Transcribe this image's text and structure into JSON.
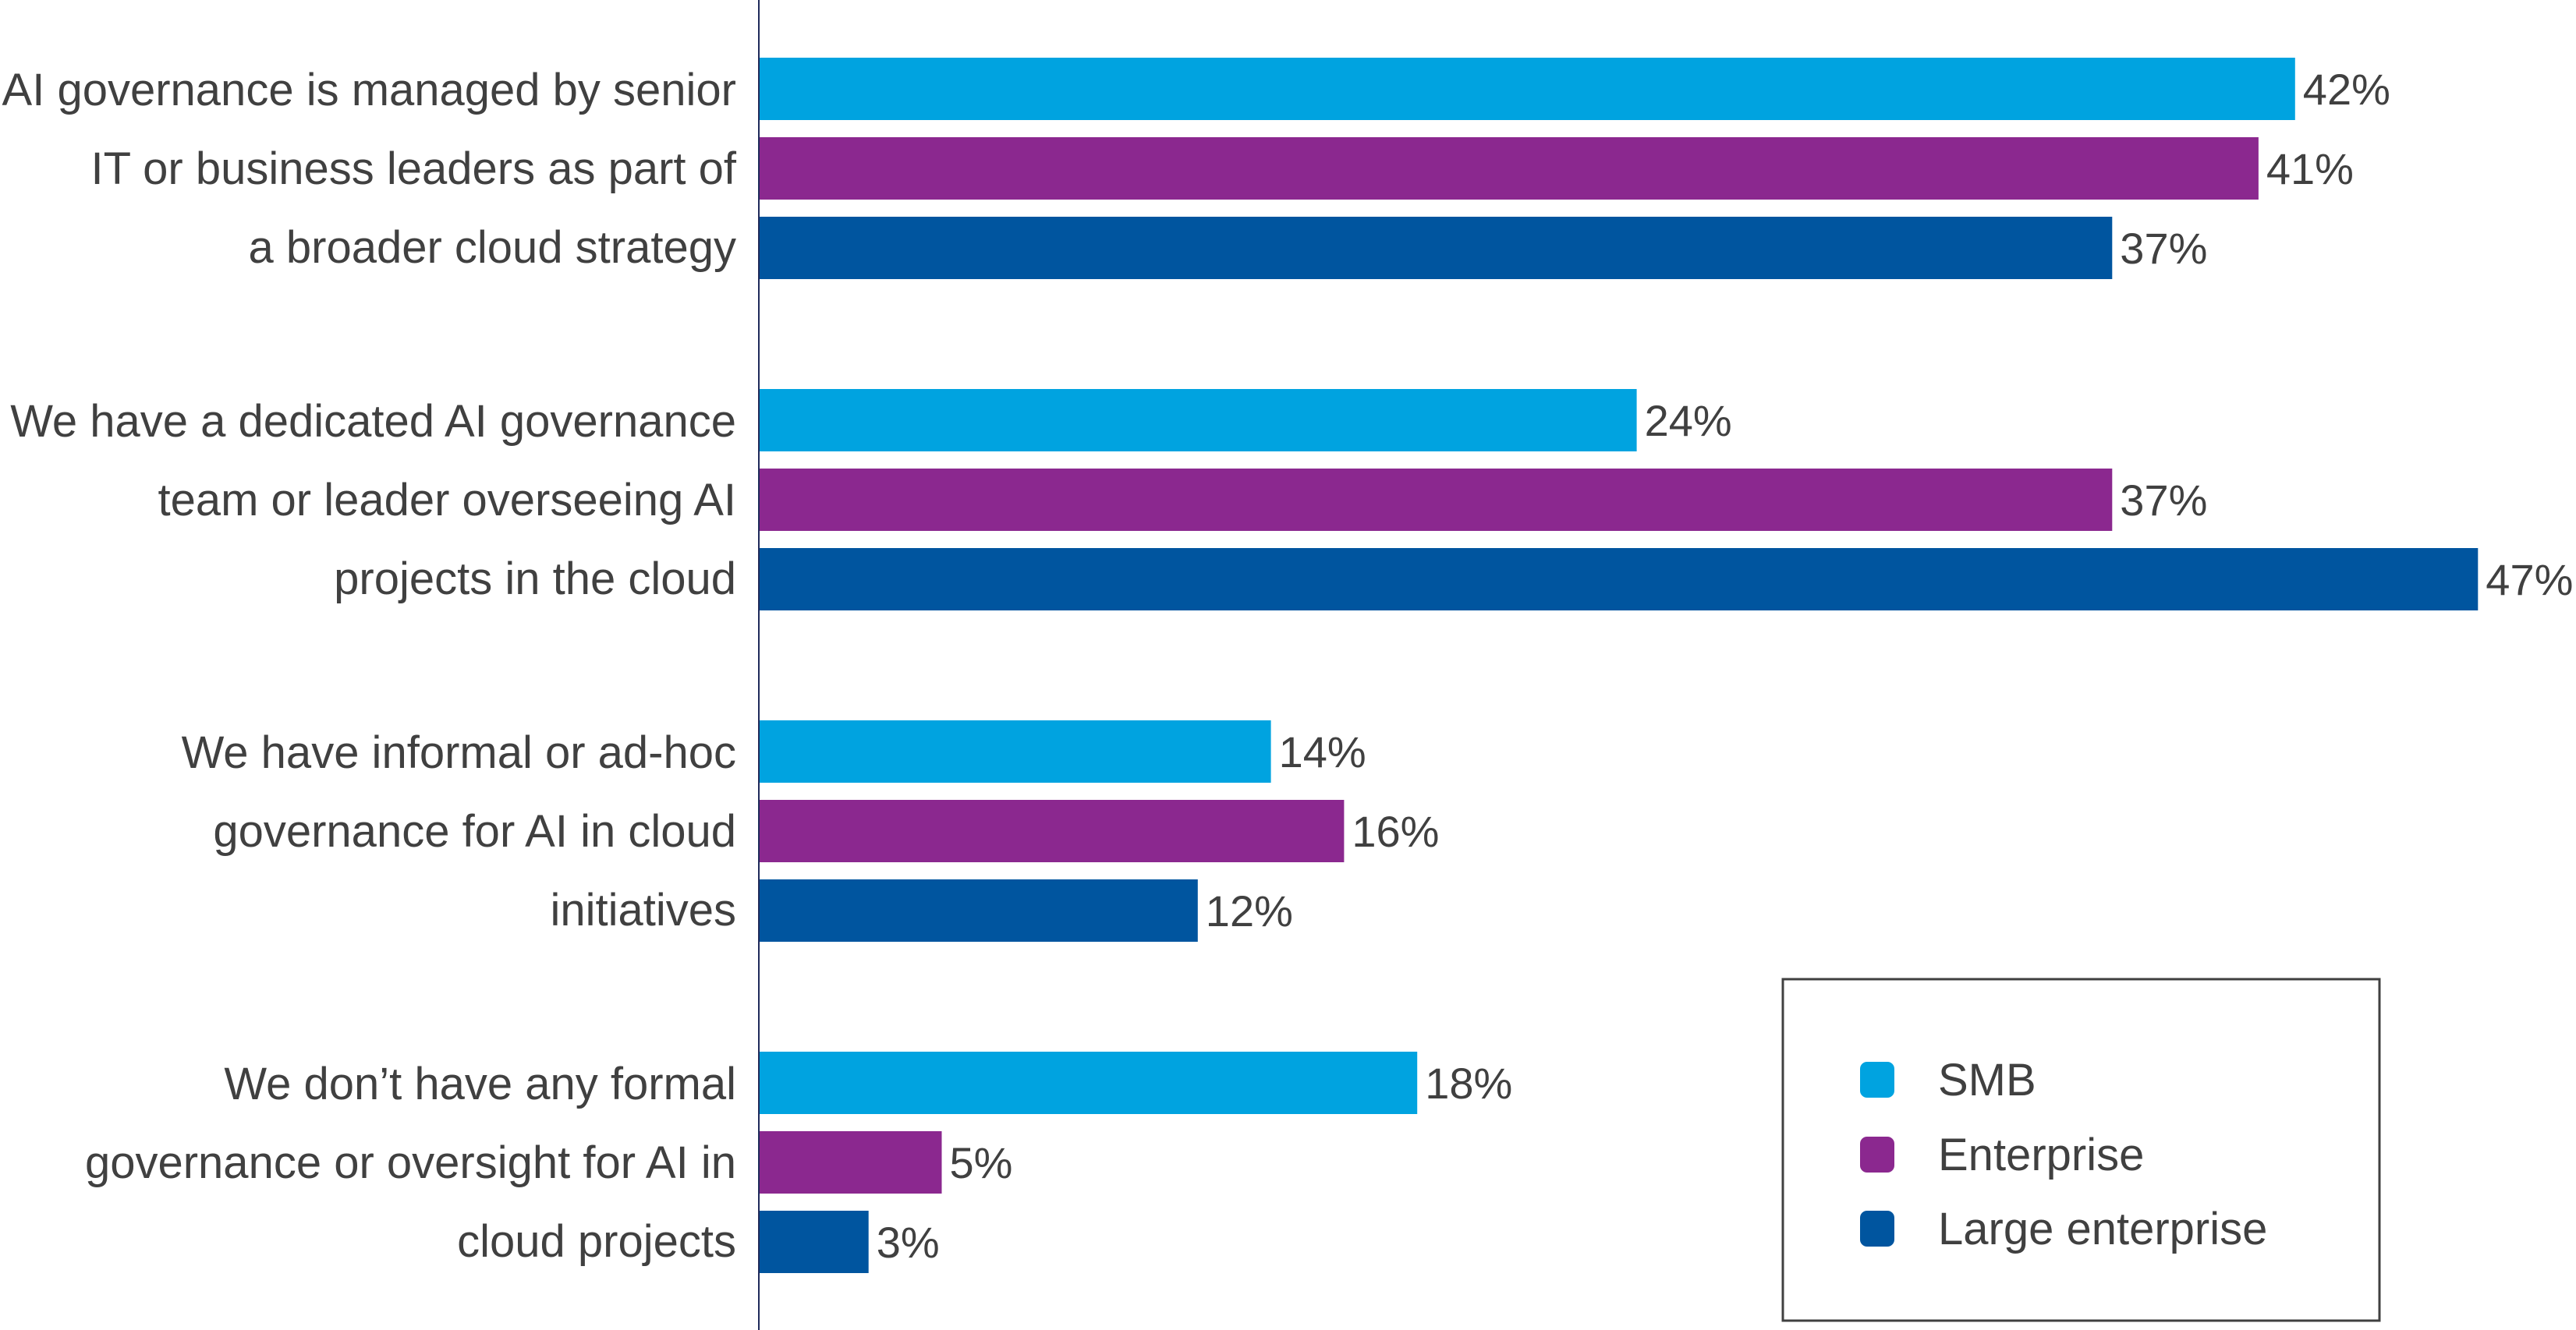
{
  "chart_data": {
    "type": "bar",
    "orientation": "horizontal",
    "categories": [
      [
        "AI governance is managed by senior",
        "IT or business leaders as part of",
        "a broader cloud strategy"
      ],
      [
        "We have a dedicated AI governance",
        "team or leader overseeing AI",
        "projects in the cloud"
      ],
      [
        "We have informal or ad-hoc",
        "governance for AI in cloud",
        "initiatives"
      ],
      [
        "We don’t have any formal",
        "governance or oversight for AI in",
        "cloud projects"
      ]
    ],
    "series": [
      {
        "name": "SMB",
        "color": "#00a3e0",
        "values": [
          42,
          24,
          14,
          18
        ],
        "labels": [
          "42%",
          "24%",
          "14%",
          "18%"
        ]
      },
      {
        "name": "Enterprise",
        "color": "#8b288f",
        "values": [
          41,
          37,
          16,
          5
        ],
        "labels": [
          "41%",
          "37%",
          "16%",
          "5%"
        ]
      },
      {
        "name": "Large enterprise",
        "color": "#00559f",
        "values": [
          37,
          47,
          12,
          3
        ],
        "labels": [
          "37%",
          "47%",
          "12%",
          "3%"
        ]
      }
    ],
    "xlim": [
      0,
      47
    ],
    "unit": "%",
    "grid": false,
    "legend_position": "bottom-right",
    "axis_color": "#1f2a5a",
    "text_color": "#404040"
  }
}
